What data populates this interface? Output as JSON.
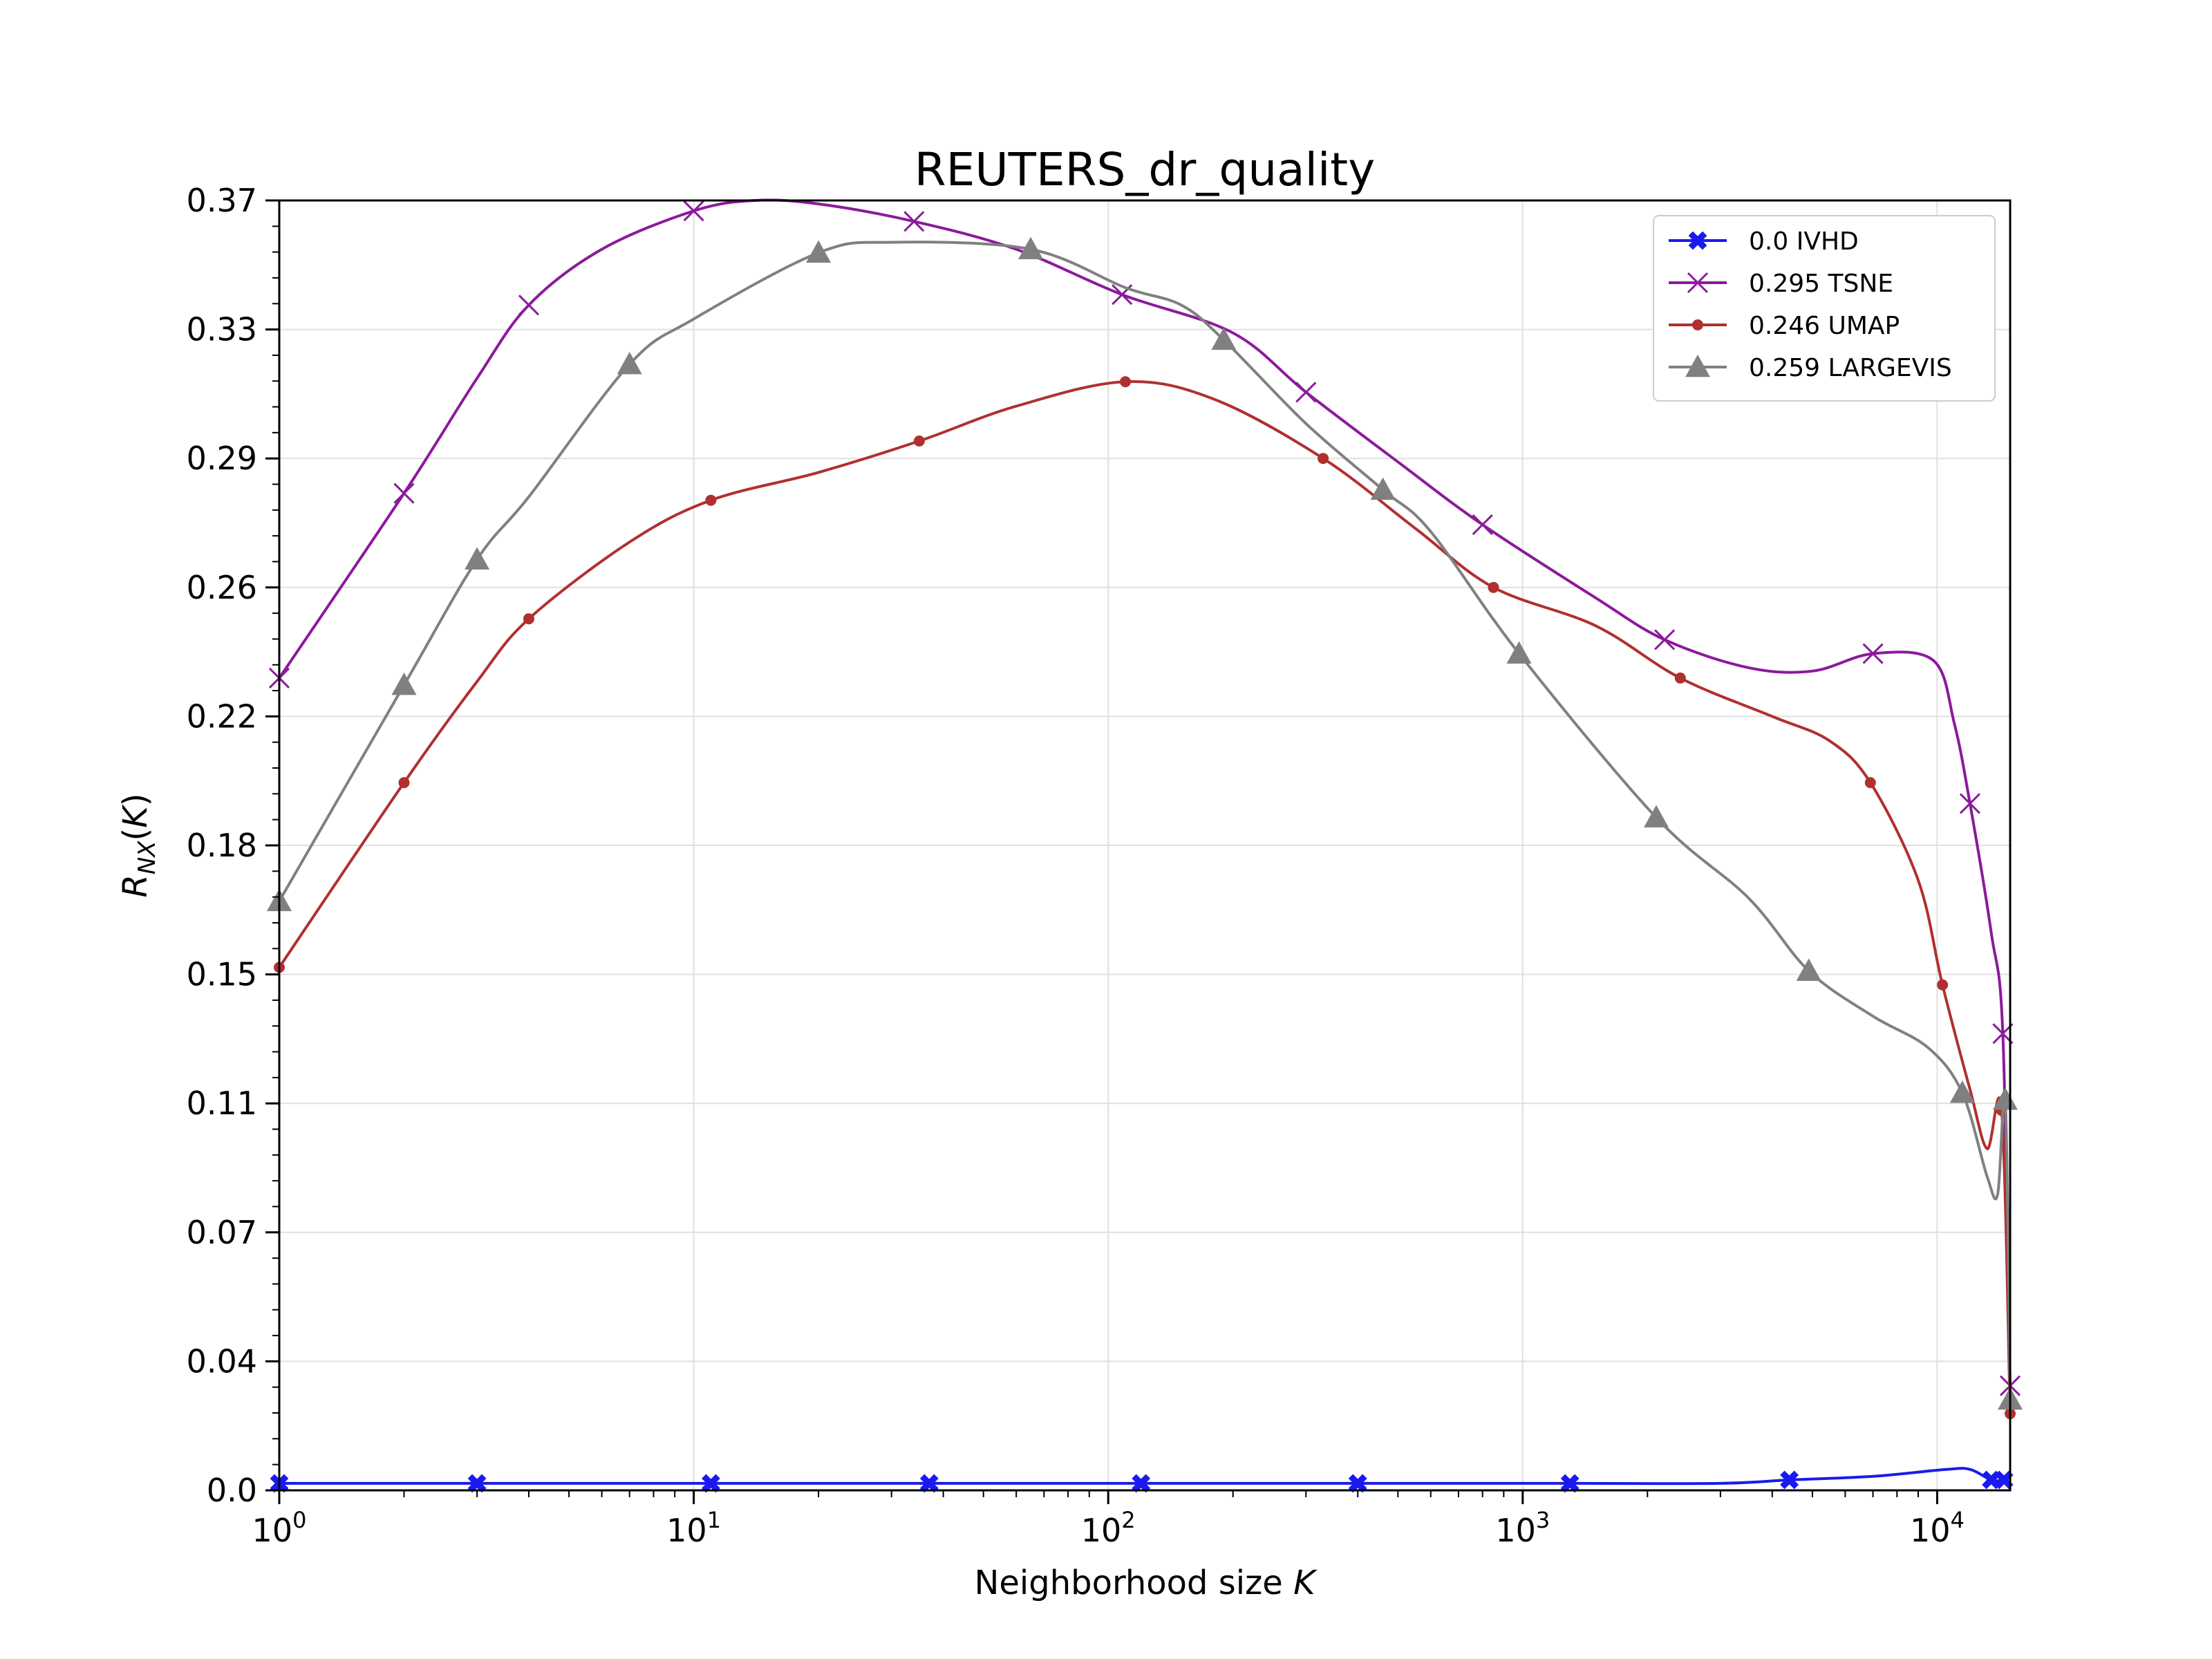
{
  "chart_data": {
    "type": "line",
    "title": "REUTERS_dr_quality",
    "xlabel": "Neighborhood size K",
    "ylabel": "R_NX(K)",
    "x_scale": "log",
    "xlim": [
      1,
      15000
    ],
    "ylim": [
      0.0,
      0.37
    ],
    "grid": true,
    "legend_position": "top-right",
    "yticks": [
      "0.0",
      "0.04",
      "0.07",
      "0.11",
      "0.15",
      "0.18",
      "0.22",
      "0.26",
      "0.29",
      "0.33",
      "0.37"
    ],
    "ytick_values": [
      0.0,
      0.037,
      0.074,
      0.111,
      0.148,
      0.185,
      0.222,
      0.259,
      0.296,
      0.333,
      0.37
    ],
    "xticks": [
      {
        "value": 1,
        "base": "10",
        "exp": "0"
      },
      {
        "value": 10,
        "base": "10",
        "exp": "1"
      },
      {
        "value": 100,
        "base": "10",
        "exp": "2"
      },
      {
        "value": 1000,
        "base": "10",
        "exp": "3"
      },
      {
        "value": 10000,
        "base": "10",
        "exp": "4"
      }
    ],
    "series": [
      {
        "name": "0.0 IVHD",
        "color": "#1a1aee",
        "marker": "x-filled",
        "points": [
          [
            1,
            0.002
          ],
          [
            3,
            0.002
          ],
          [
            11,
            0.002
          ],
          [
            37,
            0.002
          ],
          [
            120,
            0.002
          ],
          [
            400,
            0.002
          ],
          [
            1300,
            0.002
          ],
          [
            3000,
            0.002
          ],
          [
            4400,
            0.003
          ],
          [
            7000,
            0.004
          ],
          [
            10500,
            0.006
          ],
          [
            12000,
            0.006
          ],
          [
            13500,
            0.003
          ],
          [
            14500,
            0.003
          ],
          [
            15000,
            0.004
          ]
        ],
        "markers_at": [
          1,
          3,
          11,
          37,
          120,
          400,
          1300,
          4400,
          13500,
          14500
        ]
      },
      {
        "name": "0.295 TSNE",
        "color": "#8b1a9b",
        "marker": "x",
        "points": [
          [
            1,
            0.233
          ],
          [
            2,
            0.286
          ],
          [
            3,
            0.319
          ],
          [
            4,
            0.34
          ],
          [
            6,
            0.356
          ],
          [
            10,
            0.367
          ],
          [
            14,
            0.37
          ],
          [
            20,
            0.369
          ],
          [
            34,
            0.364
          ],
          [
            60,
            0.356
          ],
          [
            108,
            0.343
          ],
          [
            200,
            0.332
          ],
          [
            300,
            0.315
          ],
          [
            500,
            0.295
          ],
          [
            800,
            0.277
          ],
          [
            1500,
            0.256
          ],
          [
            2200,
            0.244
          ],
          [
            3500,
            0.236
          ],
          [
            5000,
            0.235
          ],
          [
            7000,
            0.24
          ],
          [
            9800,
            0.238
          ],
          [
            11000,
            0.22
          ],
          [
            12000,
            0.197
          ],
          [
            13500,
            0.16
          ],
          [
            14400,
            0.131
          ],
          [
            15000,
            0.03
          ]
        ],
        "markers_at": [
          1,
          2,
          4,
          10,
          34,
          108,
          300,
          800,
          2200,
          7000,
          12000,
          14400,
          15000
        ]
      },
      {
        "name": "0.246 UMAP",
        "color": "#b03030",
        "marker": "dot",
        "points": [
          [
            1,
            0.15
          ],
          [
            2,
            0.203
          ],
          [
            3,
            0.232
          ],
          [
            4,
            0.25
          ],
          [
            7,
            0.272
          ],
          [
            11,
            0.284
          ],
          [
            20,
            0.292
          ],
          [
            35,
            0.301
          ],
          [
            60,
            0.311
          ],
          [
            110,
            0.318
          ],
          [
            180,
            0.313
          ],
          [
            330,
            0.296
          ],
          [
            550,
            0.276
          ],
          [
            850,
            0.259
          ],
          [
            1500,
            0.248
          ],
          [
            2400,
            0.233
          ],
          [
            4000,
            0.222
          ],
          [
            5500,
            0.215
          ],
          [
            6900,
            0.203
          ],
          [
            9000,
            0.175
          ],
          [
            10300,
            0.145
          ],
          [
            12000,
            0.115
          ],
          [
            13200,
            0.098
          ],
          [
            14300,
            0.109
          ],
          [
            15000,
            0.022
          ]
        ],
        "markers_at": [
          1,
          2,
          4,
          11,
          35,
          110,
          330,
          850,
          2400,
          6900,
          10300,
          14300,
          15000
        ]
      },
      {
        "name": "0.259 LARGEVIS",
        "color": "#808080",
        "marker": "triangle",
        "points": [
          [
            1,
            0.169
          ],
          [
            2,
            0.231
          ],
          [
            3,
            0.267
          ],
          [
            4,
            0.285
          ],
          [
            7,
            0.323
          ],
          [
            10,
            0.336
          ],
          [
            20,
            0.355
          ],
          [
            30,
            0.358
          ],
          [
            65,
            0.356
          ],
          [
            110,
            0.345
          ],
          [
            150,
            0.34
          ],
          [
            190,
            0.33
          ],
          [
            300,
            0.306
          ],
          [
            460,
            0.287
          ],
          [
            600,
            0.275
          ],
          [
            980,
            0.24
          ],
          [
            2100,
            0.193
          ],
          [
            3500,
            0.17
          ],
          [
            4900,
            0.149
          ],
          [
            7000,
            0.136
          ],
          [
            9500,
            0.127
          ],
          [
            11500,
            0.114
          ],
          [
            13200,
            0.09
          ],
          [
            14000,
            0.085
          ],
          [
            14600,
            0.112
          ],
          [
            15000,
            0.026
          ]
        ],
        "markers_at": [
          1,
          2,
          3,
          7,
          20,
          65,
          190,
          460,
          980,
          2100,
          4900,
          11500,
          14600,
          15000
        ]
      }
    ]
  }
}
